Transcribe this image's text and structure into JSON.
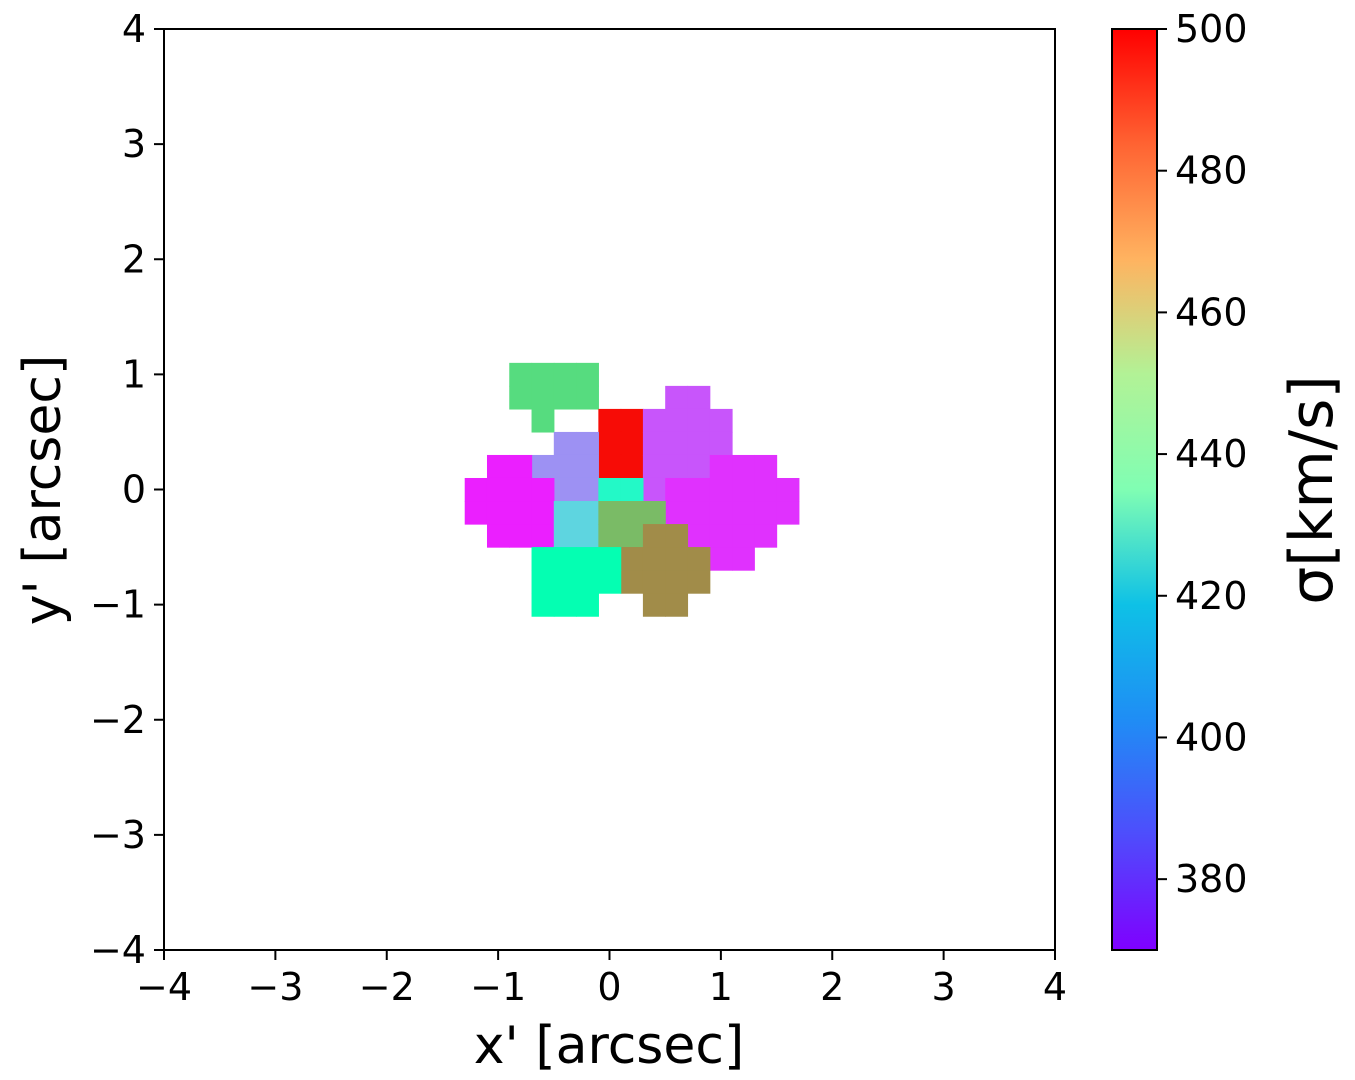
{
  "chart_data": {
    "type": "heatmap",
    "title": "",
    "xlabel": "x' [arcsec]",
    "ylabel": "y' [arcsec]",
    "xlim": [
      -4,
      4
    ],
    "ylim": [
      -4,
      4
    ],
    "xticks": [
      {
        "value": -4,
        "label": "−4"
      },
      {
        "value": -3,
        "label": "−3"
      },
      {
        "value": -2,
        "label": "−2"
      },
      {
        "value": -1,
        "label": "−1"
      },
      {
        "value": 0,
        "label": "0"
      },
      {
        "value": 1,
        "label": "1"
      },
      {
        "value": 2,
        "label": "2"
      },
      {
        "value": 3,
        "label": "3"
      },
      {
        "value": 4,
        "label": "4"
      }
    ],
    "yticks": [
      {
        "value": -4,
        "label": "−4"
      },
      {
        "value": -3,
        "label": "−3"
      },
      {
        "value": -2,
        "label": "−2"
      },
      {
        "value": -1,
        "label": "−1"
      },
      {
        "value": 0,
        "label": "0"
      },
      {
        "value": 1,
        "label": "1"
      },
      {
        "value": 2,
        "label": "2"
      },
      {
        "value": 3,
        "label": "3"
      },
      {
        "value": 4,
        "label": "4"
      }
    ],
    "grid": false,
    "pixel_size": 0.2,
    "colorbar": {
      "label": "σ[km/s]",
      "colormap": "rainbow",
      "vmin": 370,
      "vmax": 500,
      "ticks": [
        {
          "value": 380,
          "label": "380"
        },
        {
          "value": 400,
          "label": "400"
        },
        {
          "value": 420,
          "label": "420"
        },
        {
          "value": 440,
          "label": "440"
        },
        {
          "value": 460,
          "label": "460"
        },
        {
          "value": 480,
          "label": "480"
        },
        {
          "value": 500,
          "label": "500"
        }
      ]
    },
    "bins": [
      {
        "sigma": 457,
        "cells": [
          [
            -0.8,
            1.0
          ],
          [
            -0.6,
            1.0
          ],
          [
            -0.4,
            1.0
          ],
          [
            -0.2,
            1.0
          ],
          [
            -0.8,
            0.8
          ],
          [
            -0.6,
            0.8
          ],
          [
            -0.4,
            0.8
          ],
          [
            -0.2,
            0.8
          ],
          [
            -0.6,
            0.6
          ]
        ]
      },
      {
        "sigma": 498,
        "cells": [
          [
            0.0,
            0.6
          ],
          [
            0.2,
            0.6
          ],
          [
            0.0,
            0.4
          ],
          [
            0.2,
            0.4
          ],
          [
            0.0,
            0.2
          ],
          [
            0.2,
            0.2
          ]
        ]
      },
      {
        "sigma": 384,
        "cells": [
          [
            0.6,
            0.8
          ],
          [
            0.8,
            0.8
          ],
          [
            0.4,
            0.6
          ],
          [
            0.6,
            0.6
          ],
          [
            0.8,
            0.6
          ],
          [
            1.0,
            0.6
          ],
          [
            0.4,
            0.4
          ],
          [
            0.6,
            0.4
          ],
          [
            0.8,
            0.4
          ],
          [
            1.0,
            0.4
          ],
          [
            0.4,
            0.2
          ],
          [
            0.6,
            0.2
          ],
          [
            0.8,
            0.2
          ],
          [
            0.4,
            0.0
          ]
        ]
      },
      {
        "sigma": 395,
        "cells": [
          [
            -0.4,
            0.4
          ],
          [
            -0.2,
            0.4
          ],
          [
            -0.6,
            0.2
          ],
          [
            -0.4,
            0.2
          ],
          [
            -0.2,
            0.2
          ],
          [
            -0.4,
            0.0
          ],
          [
            -0.2,
            0.0
          ]
        ]
      },
      {
        "sigma": 375,
        "cells": [
          [
            -1.0,
            0.2
          ],
          [
            -0.8,
            0.2
          ],
          [
            -1.2,
            0.0
          ],
          [
            -1.0,
            0.0
          ],
          [
            -0.8,
            0.0
          ],
          [
            -0.6,
            0.0
          ],
          [
            -1.2,
            -0.2
          ],
          [
            -1.0,
            -0.2
          ],
          [
            -0.8,
            -0.2
          ],
          [
            -0.6,
            -0.2
          ],
          [
            -1.0,
            -0.4
          ],
          [
            -0.8,
            -0.4
          ],
          [
            -0.6,
            -0.4
          ]
        ]
      },
      {
        "sigma": 426,
        "cells": [
          [
            0.0,
            0.0
          ],
          [
            0.2,
            0.0
          ]
        ]
      },
      {
        "sigma": 378,
        "cells": [
          [
            1.0,
            0.2
          ],
          [
            1.2,
            0.2
          ],
          [
            1.4,
            0.2
          ],
          [
            0.6,
            0.0
          ],
          [
            0.8,
            0.0
          ],
          [
            1.0,
            0.0
          ],
          [
            1.2,
            0.0
          ],
          [
            1.4,
            0.0
          ],
          [
            1.6,
            0.0
          ],
          [
            0.6,
            -0.2
          ],
          [
            0.8,
            -0.2
          ],
          [
            1.0,
            -0.2
          ],
          [
            1.2,
            -0.2
          ],
          [
            1.4,
            -0.2
          ],
          [
            1.6,
            -0.2
          ],
          [
            0.8,
            -0.4
          ],
          [
            1.0,
            -0.4
          ],
          [
            1.2,
            -0.4
          ],
          [
            1.4,
            -0.4
          ],
          [
            1.0,
            -0.6
          ],
          [
            1.2,
            -0.6
          ]
        ]
      },
      {
        "sigma": 411,
        "cells": [
          [
            -0.4,
            -0.2
          ],
          [
            -0.2,
            -0.2
          ],
          [
            -0.4,
            -0.4
          ],
          [
            -0.2,
            -0.4
          ]
        ]
      },
      {
        "sigma": 466,
        "cells": [
          [
            0.0,
            -0.2
          ],
          [
            0.2,
            -0.2
          ],
          [
            0.4,
            -0.2
          ],
          [
            0.0,
            -0.4
          ],
          [
            0.2,
            -0.4
          ]
        ]
      },
      {
        "sigma": 476,
        "cells": [
          [
            0.4,
            -0.4
          ],
          [
            0.6,
            -0.4
          ],
          [
            0.2,
            -0.6
          ],
          [
            0.4,
            -0.6
          ],
          [
            0.6,
            -0.6
          ],
          [
            0.8,
            -0.6
          ],
          [
            0.2,
            -0.8
          ],
          [
            0.4,
            -0.8
          ],
          [
            0.6,
            -0.8
          ],
          [
            0.8,
            -0.8
          ],
          [
            0.4,
            -1.0
          ],
          [
            0.6,
            -1.0
          ]
        ]
      },
      {
        "sigma": 436,
        "cells": [
          [
            -0.6,
            -0.6
          ],
          [
            -0.4,
            -0.6
          ],
          [
            -0.2,
            -0.6
          ],
          [
            0.0,
            -0.6
          ],
          [
            -0.6,
            -0.8
          ],
          [
            -0.4,
            -0.8
          ],
          [
            -0.2,
            -0.8
          ],
          [
            0.0,
            -0.8
          ],
          [
            -0.6,
            -1.0
          ],
          [
            -0.4,
            -1.0
          ],
          [
            -0.2,
            -1.0
          ]
        ]
      }
    ]
  }
}
